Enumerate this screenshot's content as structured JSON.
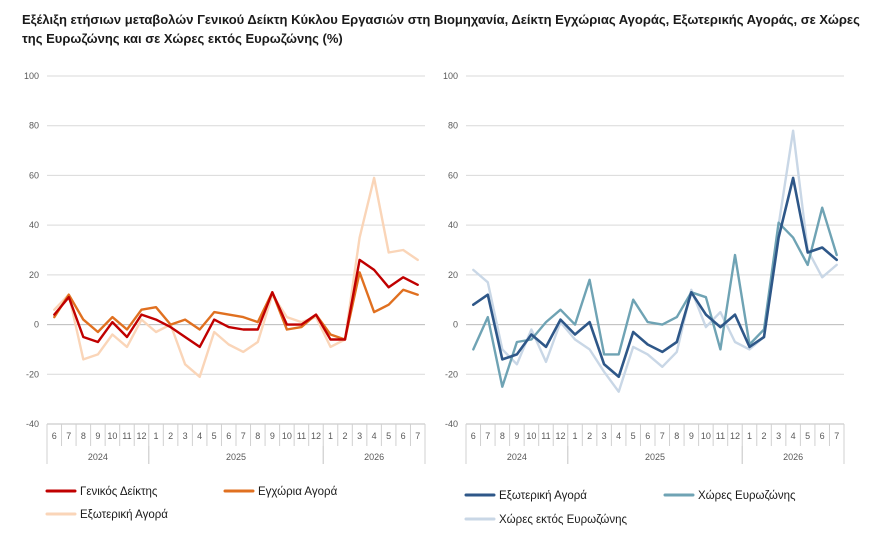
{
  "title": "Εξέλιξη ετήσιων μεταβολών Γενικού Δείκτη Κύκλου Εργασιών στη Βιομηχανία, Δείκτη Εγχώριας Αγοράς, Εξωτερικής Αγοράς,  σε Χώρες της Ευρωζώνης και σε Χώρες εκτός Ευρωζώνης (%)",
  "chart_data": [
    {
      "type": "line",
      "title": "",
      "xlabel": "",
      "ylabel": "",
      "ylim": [
        -40,
        100
      ],
      "yticks": [
        -40,
        -20,
        0,
        20,
        40,
        60,
        80,
        100
      ],
      "grid": true,
      "legend": "bottom",
      "categories": [
        "6",
        "7",
        "8",
        "9",
        "10",
        "11",
        "12",
        "1",
        "2",
        "3",
        "4",
        "5",
        "6",
        "7",
        "8",
        "9",
        "10",
        "11",
        "12",
        "1",
        "2",
        "3",
        "4",
        "5",
        "6",
        "7"
      ],
      "year_groups": [
        {
          "label": "2024",
          "start": 0,
          "count": 7
        },
        {
          "label": "2025",
          "start": 7,
          "count": 12
        },
        {
          "label": "2026",
          "start": 19,
          "count": 7
        }
      ],
      "series": [
        {
          "name": "Εξωτερική Αγορά",
          "color": "#FAD5B8",
          "width": 2.4,
          "values": [
            6,
            12,
            -14,
            -12,
            -4,
            -9,
            2,
            -3,
            0,
            -16,
            -21,
            -3,
            -8,
            -11,
            -7,
            12,
            3,
            1,
            3,
            -9,
            -6,
            35,
            59,
            29,
            30,
            26
          ]
        },
        {
          "name": "Εγχώρια Αγορά",
          "color": "#E07020",
          "width": 2.4,
          "values": [
            3,
            12,
            2,
            -3,
            3,
            -2,
            6,
            7,
            0,
            2,
            -2,
            5,
            4,
            3,
            1,
            13,
            -2,
            -1,
            4,
            -4,
            -6,
            21,
            5,
            8,
            14,
            12
          ]
        },
        {
          "name": "Γενικός Δείκτης",
          "color": "#C00000",
          "width": 2.4,
          "values": [
            4,
            11,
            -5,
            -7,
            1,
            -5,
            4,
            2,
            -1,
            -5,
            -9,
            2,
            -1,
            -2,
            -2,
            13,
            0,
            0,
            4,
            -6,
            -6,
            26,
            22,
            15,
            19,
            16
          ]
        }
      ]
    },
    {
      "type": "line",
      "title": "",
      "xlabel": "",
      "ylabel": "",
      "ylim": [
        -40,
        100
      ],
      "yticks": [
        -40,
        -20,
        0,
        20,
        40,
        60,
        80,
        100
      ],
      "grid": true,
      "legend": "bottom",
      "categories": [
        "6",
        "7",
        "8",
        "9",
        "10",
        "11",
        "12",
        "1",
        "2",
        "3",
        "4",
        "5",
        "6",
        "7",
        "8",
        "9",
        "10",
        "11",
        "12",
        "1",
        "2",
        "3",
        "4",
        "5",
        "6",
        "7"
      ],
      "year_groups": [
        {
          "label": "2024",
          "start": 0,
          "count": 7
        },
        {
          "label": "2025",
          "start": 7,
          "count": 12
        },
        {
          "label": "2026",
          "start": 19,
          "count": 7
        }
      ],
      "series": [
        {
          "name": "Χώρες εκτός Ευρωζώνης",
          "color": "#C9D7E6",
          "width": 2.4,
          "values": [
            22,
            17,
            -10,
            -16,
            -2,
            -15,
            1,
            -6,
            -10,
            -19,
            -27,
            -9,
            -12,
            -17,
            -11,
            14,
            -1,
            5,
            -7,
            -10,
            -5,
            40,
            78,
            30,
            19,
            24
          ]
        },
        {
          "name": "Χώρες Ευρωζώνης",
          "color": "#6FA3B4",
          "width": 2.4,
          "values": [
            -10,
            3,
            -25,
            -7,
            -6,
            1,
            6,
            0,
            18,
            -12,
            -12,
            10,
            1,
            0,
            3,
            13,
            11,
            -10,
            28,
            -8,
            -2,
            41,
            35,
            24,
            47,
            28
          ]
        },
        {
          "name": "Εξωτερική Αγορά",
          "color": "#2E5788",
          "width": 2.6,
          "values": [
            8,
            12,
            -14,
            -12,
            -4,
            -9,
            2,
            -4,
            1,
            -16,
            -21,
            -3,
            -8,
            -11,
            -7,
            13,
            4,
            -1,
            4,
            -9,
            -5,
            35,
            59,
            29,
            31,
            26
          ]
        }
      ]
    }
  ],
  "legends": [
    [
      {
        "label": "Γενικός Δείκτης",
        "color": "#C00000"
      },
      {
        "label": "Εγχώρια Αγορά",
        "color": "#E07020"
      },
      {
        "label": "Εξωτερική Αγορά",
        "color": "#FAD5B8"
      }
    ],
    [
      {
        "label": "Εξωτερική Αγορά",
        "color": "#2E5788"
      },
      {
        "label": "Χώρες Ευρωζώνης",
        "color": "#6FA3B4"
      },
      {
        "label": "Χώρες εκτός Ευρωζώνης",
        "color": "#C9D7E6"
      }
    ]
  ]
}
